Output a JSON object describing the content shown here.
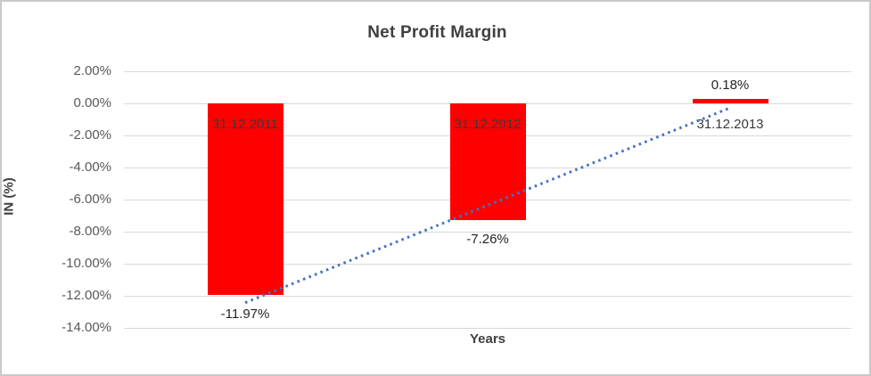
{
  "window": {
    "background": "#ffffff",
    "frame_border_color": "#c9c9c9"
  },
  "chart_data": {
    "type": "bar",
    "title": "Net Profit Margin",
    "xlabel": "Years",
    "ylabel": "IN (%)",
    "categories": [
      "31.12.2011",
      "31.12.2012",
      "31.12.2013"
    ],
    "series": [
      {
        "name": "Net Profit Margin",
        "values": [
          -11.97,
          -7.26,
          0.18
        ]
      }
    ],
    "value_labels": [
      "-11.97%",
      "-7.26%",
      "0.18%"
    ],
    "ylim": [
      -14,
      2
    ],
    "ytick_values": [
      2,
      0,
      -2,
      -4,
      -6,
      -8,
      -10,
      -12,
      -14
    ],
    "ytick_labels": [
      "2.00%",
      "0.00%",
      "-2.00%",
      "-4.00%",
      "-6.00%",
      "-8.00%",
      "-10.00%",
      "-12.00%",
      "-14.00%"
    ],
    "grid": true,
    "legend_position": "none",
    "bar_color": "#ff0000",
    "gridline_color": "#d9d9d9",
    "tick_label_color": "#595959",
    "title_color": "#404040",
    "data_label_color": "#262626",
    "category_label_color": "#3a3a3a",
    "trendline": {
      "type": "linear",
      "style": "dotted",
      "color": "#4472c4",
      "start_value": -12.43,
      "end_value": -0.28
    }
  }
}
